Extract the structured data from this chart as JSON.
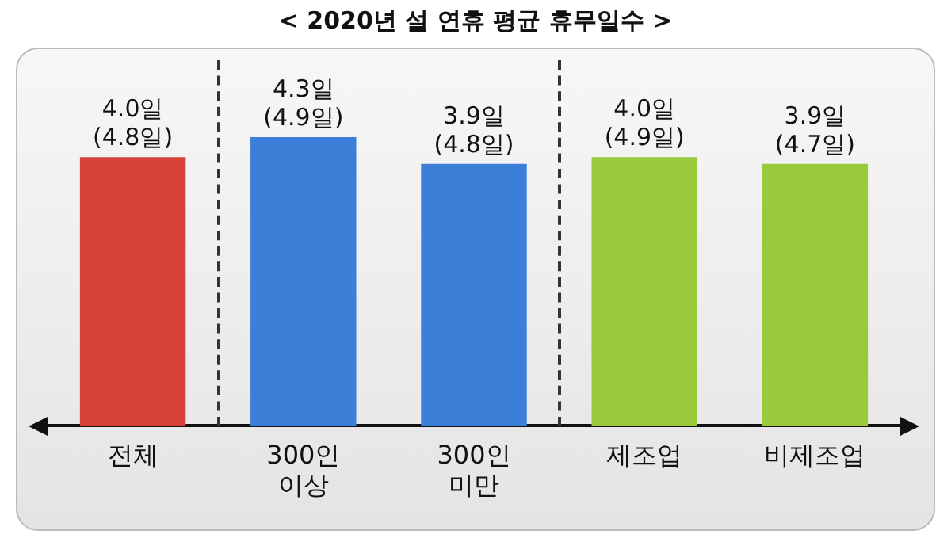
{
  "chart_data": {
    "type": "bar",
    "title": "< 2020년 설 연휴 평균 휴무일수 >",
    "categories": [
      "전체",
      "300인\n이상",
      "300인\n미만",
      "제조업",
      "비제조업"
    ],
    "values": [
      4.0,
      4.3,
      3.9,
      4.0,
      3.9
    ],
    "colors": [
      "#d8403a",
      "#3b7fd9",
      "#3b7fd9",
      "#9bc93c",
      "#9bc93c"
    ],
    "value_labels": [
      "4.0일\n(4.8일)",
      "4.3일\n(4.9일)",
      "3.9일\n(4.8일)",
      "4.0일\n(4.9일)",
      "3.9일\n(4.7일)"
    ],
    "tick_labels": "x",
    "legend": false
  }
}
